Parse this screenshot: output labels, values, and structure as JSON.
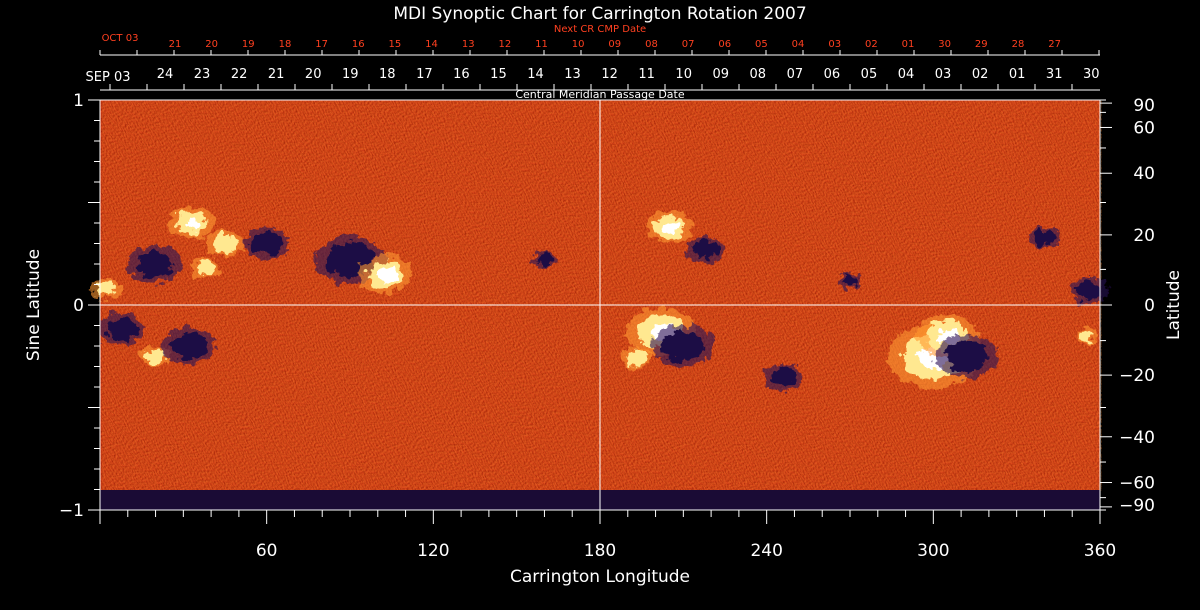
{
  "chart_data": {
    "type": "heatmap",
    "title": "MDI Synoptic Chart for Carrington Rotation 2007",
    "xlabel": "Carrington Longitude",
    "ylabel_left": "Sine Latitude",
    "ylabel_right": "Latitude",
    "xlim": [
      0,
      360
    ],
    "ylim": [
      -1,
      1
    ],
    "x_ticks": [
      60,
      120,
      180,
      240,
      300,
      360
    ],
    "y_ticks_left": [
      {
        "value": 1,
        "label": "1"
      },
      {
        "value": 0,
        "label": "0"
      },
      {
        "value": -1,
        "label": "−1"
      }
    ],
    "y_ticks_right": [
      90,
      60,
      40,
      20,
      0,
      -20,
      -40,
      -60,
      -90
    ],
    "top_axis": {
      "title": "Central Meridian Passage Date",
      "start_label": "SEP 03",
      "labels": [
        "24",
        "23",
        "22",
        "21",
        "20",
        "19",
        "18",
        "17",
        "16",
        "15",
        "14",
        "13",
        "12",
        "11",
        "10",
        "09",
        "08",
        "07",
        "06",
        "05",
        "04",
        "03",
        "02",
        "01",
        "31",
        "30"
      ]
    },
    "next_axis": {
      "title": "Next CR CMP Date",
      "start_label": "OCT 03",
      "labels": [
        "21",
        "20",
        "19",
        "18",
        "17",
        "16",
        "15",
        "14",
        "13",
        "12",
        "11",
        "10",
        "09",
        "08",
        "07",
        "06",
        "05",
        "04",
        "03",
        "02",
        "01",
        "30",
        "29",
        "28",
        "27"
      ]
    },
    "colorscale": [
      "#1a0b45",
      "#2a0e55",
      "#b81a00",
      "#e04800",
      "#ff6a10",
      "#ffb040",
      "#ffe890",
      "#ffffff"
    ],
    "background_color": "#d84a10",
    "regions": [
      {
        "lon": 33,
        "sinlat": 0.4,
        "polarity": "positive",
        "size": 6
      },
      {
        "lon": 45,
        "sinlat": 0.3,
        "polarity": "positive",
        "size": 5
      },
      {
        "lon": 60,
        "sinlat": 0.3,
        "polarity": "negative",
        "size": 6
      },
      {
        "lon": 90,
        "sinlat": 0.22,
        "polarity": "negative",
        "size": 9
      },
      {
        "lon": 103,
        "sinlat": 0.15,
        "polarity": "positive",
        "size": 7
      },
      {
        "lon": 20,
        "sinlat": 0.2,
        "polarity": "negative",
        "size": 7
      },
      {
        "lon": 38,
        "sinlat": 0.18,
        "polarity": "positive",
        "size": 4
      },
      {
        "lon": 2,
        "sinlat": 0.08,
        "polarity": "positive",
        "size": 4
      },
      {
        "lon": 8,
        "sinlat": -0.12,
        "polarity": "negative",
        "size": 6
      },
      {
        "lon": 20,
        "sinlat": -0.25,
        "polarity": "positive",
        "size": 4
      },
      {
        "lon": 32,
        "sinlat": -0.2,
        "polarity": "negative",
        "size": 7
      },
      {
        "lon": 160,
        "sinlat": 0.22,
        "polarity": "negative",
        "size": 3
      },
      {
        "lon": 205,
        "sinlat": 0.38,
        "polarity": "positive",
        "size": 6
      },
      {
        "lon": 218,
        "sinlat": 0.27,
        "polarity": "negative",
        "size": 5
      },
      {
        "lon": 202,
        "sinlat": -0.13,
        "polarity": "positive",
        "size": 9
      },
      {
        "lon": 210,
        "sinlat": -0.2,
        "polarity": "negative",
        "size": 8
      },
      {
        "lon": 193,
        "sinlat": -0.26,
        "polarity": "positive",
        "size": 4
      },
      {
        "lon": 246,
        "sinlat": -0.35,
        "polarity": "negative",
        "size": 5
      },
      {
        "lon": 270,
        "sinlat": 0.12,
        "polarity": "negative",
        "size": 3
      },
      {
        "lon": 300,
        "sinlat": -0.25,
        "polarity": "positive",
        "size": 12
      },
      {
        "lon": 305,
        "sinlat": -0.15,
        "polarity": "positive",
        "size": 8
      },
      {
        "lon": 312,
        "sinlat": -0.25,
        "polarity": "negative",
        "size": 8
      },
      {
        "lon": 340,
        "sinlat": 0.33,
        "polarity": "negative",
        "size": 4
      },
      {
        "lon": 356,
        "sinlat": 0.07,
        "polarity": "negative",
        "size": 5
      },
      {
        "lon": 355,
        "sinlat": -0.15,
        "polarity": "positive",
        "size": 3
      }
    ]
  },
  "colors": {
    "axis": "#ffffff",
    "next_axis_text": "#ff4020"
  }
}
